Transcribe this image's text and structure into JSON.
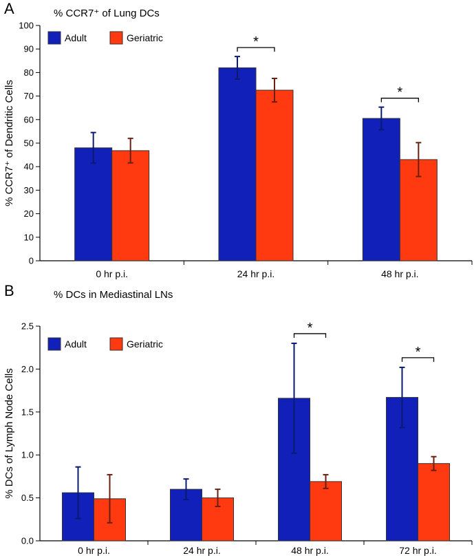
{
  "chart_data": [
    {
      "type": "bar",
      "panel": "A",
      "title": "% CCR7⁺ of Lung DCs",
      "xlabel": "",
      "ylabel": "% CCR7⁺ of Dendritic Cells",
      "ylim": [
        0,
        100
      ],
      "yticks": [
        "0",
        "10",
        "20",
        "30",
        "40",
        "50",
        "60",
        "70",
        "80",
        "90",
        "100"
      ],
      "ytick_values": [
        0,
        10,
        20,
        30,
        40,
        50,
        60,
        70,
        80,
        90,
        100
      ],
      "categories": [
        "0 hr p.i.",
        "24 hr p.i.",
        "48 hr p.i."
      ],
      "series": [
        {
          "name": "Adult",
          "color": "#1020b8",
          "values": [
            48,
            82,
            60.5
          ],
          "errors": [
            6.5,
            4.8,
            4.8
          ]
        },
        {
          "name": "Geriatric",
          "color": "#ff3a10",
          "values": [
            46.8,
            72.5,
            43
          ],
          "errors": [
            5.2,
            5,
            7.2
          ]
        }
      ],
      "significance": [
        {
          "category_index": 1,
          "label": "*"
        },
        {
          "category_index": 2,
          "label": "*"
        }
      ],
      "legend": "top-left"
    },
    {
      "type": "bar",
      "panel": "B",
      "title": "% DCs in Mediastinal LNs",
      "xlabel": "",
      "ylabel": "% DCs of  Lymph Node Cells",
      "ylim": [
        0,
        2.5
      ],
      "yticks": [
        "0.0",
        "0.5",
        "1.0",
        "1.5",
        "2.0",
        "2.5"
      ],
      "ytick_values": [
        0,
        0.5,
        1.0,
        1.5,
        2.0,
        2.5
      ],
      "categories": [
        "0 hr p.i.",
        "24 hr p.i.",
        "48 hr p.i.",
        "72 hr p.i."
      ],
      "series": [
        {
          "name": "Adult",
          "color": "#1020b8",
          "values": [
            0.56,
            0.6,
            1.66,
            1.67
          ],
          "errors": [
            0.3,
            0.12,
            0.64,
            0.35
          ]
        },
        {
          "name": "Geriatric",
          "color": "#ff3a10",
          "values": [
            0.49,
            0.5,
            0.69,
            0.9
          ],
          "errors": [
            0.28,
            0.1,
            0.08,
            0.08
          ]
        }
      ],
      "significance": [
        {
          "category_index": 2,
          "label": "*"
        },
        {
          "category_index": 3,
          "label": "*"
        }
      ],
      "legend": "top-left"
    }
  ]
}
